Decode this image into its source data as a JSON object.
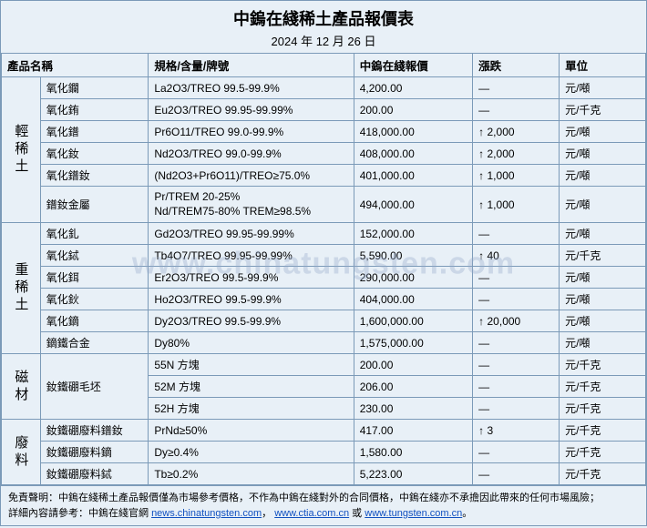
{
  "title": "中鎢在綫稀土產品報價表",
  "date": "2024 年 12 月 26 日",
  "watermark": "www.chinatungsten.com",
  "headers": {
    "name": "產品名稱",
    "spec": "規格/含量/牌號",
    "price": "中鎢在綫報價",
    "change": "漲跌",
    "unit": "單位"
  },
  "arrow_up": "↑",
  "dash": "—",
  "groups": [
    {
      "cat": "輕稀土",
      "rows": [
        {
          "name": "氧化鑭",
          "spec": "La2O3/TREO 99.5-99.9%",
          "price": "4,200.00",
          "change": "—",
          "unit": "元/噸"
        },
        {
          "name": "氧化銪",
          "spec": "Eu2O3/TREO 99.95-99.99%",
          "price": "200.00",
          "change": "—",
          "unit": "元/千克"
        },
        {
          "name": "氧化鐠",
          "spec": "Pr6O11/TREO 99.0-99.9%",
          "price": "418,000.00",
          "change": "↑ 2,000",
          "unit": "元/噸"
        },
        {
          "name": "氧化釹",
          "spec": "Nd2O3/TREO 99.0-99.9%",
          "price": "408,000.00",
          "change": "↑ 2,000",
          "unit": "元/噸"
        },
        {
          "name": "氧化鐠釹",
          "spec": "(Nd2O3+Pr6O11)/TREO≥75.0%",
          "price": "401,000.00",
          "change": "↑ 1,000",
          "unit": "元/噸"
        },
        {
          "name": "鐠釹金屬",
          "spec": "Pr/TREM 20-25% Nd/TREM75-80% TREM≥98.5%",
          "price": "494,000.00",
          "change": "↑ 1,000",
          "unit": "元/噸",
          "tall": true
        }
      ]
    },
    {
      "cat": "重稀土",
      "rows": [
        {
          "name": "氧化釓",
          "spec": "Gd2O3/TREO 99.95-99.99%",
          "price": "152,000.00",
          "change": "—",
          "unit": "元/噸"
        },
        {
          "name": "氧化鋱",
          "spec": "Tb4O7/TREO 99.95-99.99%",
          "price": "5,590.00",
          "change": "↑ 40",
          "unit": "元/千克"
        },
        {
          "name": "氧化鉺",
          "spec": "Er2O3/TREO 99.5-99.9%",
          "price": "290,000.00",
          "change": "—",
          "unit": "元/噸"
        },
        {
          "name": "氧化鈥",
          "spec": "Ho2O3/TREO 99.5-99.9%",
          "price": "404,000.00",
          "change": "—",
          "unit": "元/噸"
        },
        {
          "name": "氧化鏑",
          "spec": "Dy2O3/TREO 99.5-99.9%",
          "price": "1,600,000.00",
          "change": "↑ 20,000",
          "unit": "元/噸"
        },
        {
          "name": "鏑鐵合金",
          "spec": "Dy80%",
          "price": "1,575,000.00",
          "change": "—",
          "unit": "元/噸"
        }
      ]
    },
    {
      "cat": "磁材",
      "rows": [
        {
          "name": "釹鐵硼毛坯",
          "spec": "55N 方塊",
          "price": "200.00",
          "change": "—",
          "unit": "元/千克",
          "name_rowspan": 3
        },
        {
          "spec": "52M 方塊",
          "price": "206.00",
          "change": "—",
          "unit": "元/千克"
        },
        {
          "spec": "52H 方塊",
          "price": "230.00",
          "change": "—",
          "unit": "元/千克"
        }
      ]
    },
    {
      "cat": "廢料",
      "rows": [
        {
          "name": "釹鐵硼廢料鐠釹",
          "spec": "PrNd≥50%",
          "price": "417.00",
          "change": "↑ 3",
          "unit": "元/千克"
        },
        {
          "name": "釹鐵硼廢料鏑",
          "spec": "Dy≥0.4%",
          "price": "1,580.00",
          "change": "—",
          "unit": "元/千克"
        },
        {
          "name": "釹鐵硼廢料鋱",
          "spec": "Tb≥0.2%",
          "price": "5,223.00",
          "change": "—",
          "unit": "元/千克"
        }
      ]
    }
  ],
  "footer": {
    "line1_prefix": "免責聲明：中鎢在綫稀土產品報價僅為市場參考價格，不作為中鎢在綫對外的合同價格，中鎢在綫亦不承擔因此帶來的任何市場風險；",
    "line2_prefix": "詳細內容請參考：中鎢在綫官網 ",
    "link1": "news.chinatungsten.com",
    "sep1": "，",
    "link2": "www.ctia.com.cn",
    "sep2": " 或 ",
    "link3": "www.tungsten.com.cn",
    "suffix": "。"
  }
}
